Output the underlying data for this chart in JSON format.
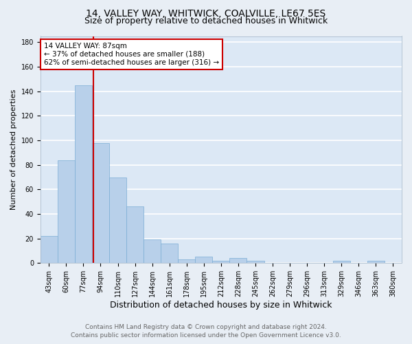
{
  "title": "14, VALLEY WAY, WHITWICK, COALVILLE, LE67 5ES",
  "subtitle": "Size of property relative to detached houses in Whitwick",
  "xlabel": "Distribution of detached houses by size in Whitwick",
  "ylabel": "Number of detached properties",
  "categories": [
    "43sqm",
    "60sqm",
    "77sqm",
    "94sqm",
    "110sqm",
    "127sqm",
    "144sqm",
    "161sqm",
    "178sqm",
    "195sqm",
    "212sqm",
    "228sqm",
    "245sqm",
    "262sqm",
    "279sqm",
    "296sqm",
    "313sqm",
    "329sqm",
    "346sqm",
    "363sqm",
    "380sqm"
  ],
  "values": [
    22,
    84,
    145,
    98,
    70,
    46,
    19,
    16,
    3,
    5,
    2,
    4,
    2,
    0,
    0,
    0,
    0,
    2,
    0,
    2,
    0
  ],
  "bar_color": "#b8d0ea",
  "bar_edge_color": "#7aadd4",
  "red_line_color": "#cc0000",
  "annotation_line1": "14 VALLEY WAY: 87sqm",
  "annotation_line2": "← 37% of detached houses are smaller (188)",
  "annotation_line3": "62% of semi-detached houses are larger (316) →",
  "annotation_box_color": "#ffffff",
  "annotation_box_edge": "#cc0000",
  "ylim": [
    0,
    185
  ],
  "yticks": [
    0,
    20,
    40,
    60,
    80,
    100,
    120,
    140,
    160,
    180
  ],
  "footer_line1": "Contains HM Land Registry data © Crown copyright and database right 2024.",
  "footer_line2": "Contains public sector information licensed under the Open Government Licence v3.0.",
  "bg_color": "#e8eef5",
  "plot_bg_color": "#dce8f5",
  "grid_color": "#ffffff",
  "title_fontsize": 10,
  "subtitle_fontsize": 9,
  "ylabel_fontsize": 8,
  "xlabel_fontsize": 9,
  "tick_fontsize": 7,
  "annot_fontsize": 7.5,
  "footer_fontsize": 6.5
}
